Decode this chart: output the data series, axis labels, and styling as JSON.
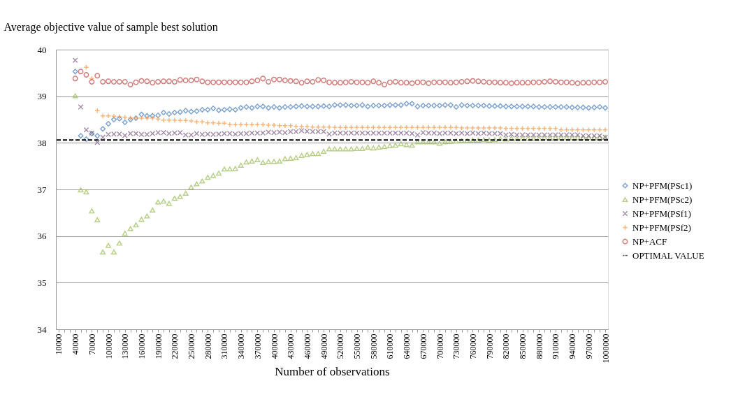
{
  "chart_data": {
    "type": "scatter",
    "xlabel": "Number of observations",
    "ylabel": "Average objective value of sample best solution",
    "categories": [
      "10000",
      null,
      null,
      "40000",
      null,
      null,
      "70000",
      null,
      null,
      "100000",
      null,
      null,
      "130000",
      null,
      null,
      "160000",
      null,
      null,
      "190000",
      null,
      null,
      "220000",
      null,
      null,
      "250000",
      null,
      null,
      "280000",
      null,
      null,
      "310000",
      null,
      null,
      "340000",
      null,
      null,
      "370000",
      null,
      null,
      "400000",
      null,
      null,
      "430000",
      null,
      null,
      "460000",
      null,
      null,
      "490000",
      null,
      null,
      "520000",
      null,
      null,
      "550000",
      null,
      null,
      "580000",
      null,
      null,
      "610000",
      null,
      null,
      "640000",
      null,
      null,
      "670000",
      null,
      null,
      "700000",
      null,
      null,
      "730000",
      null,
      null,
      "760000",
      null,
      null,
      "790000",
      null,
      null,
      "820000",
      null,
      null,
      "850000",
      null,
      null,
      "880000",
      null,
      null,
      "910000",
      null,
      null,
      "940000",
      null,
      null,
      "970000",
      null,
      null,
      "1000000"
    ],
    "ylim": [
      34,
      40
    ],
    "yticks": [
      34,
      35,
      36,
      37,
      38,
      39,
      40
    ],
    "grid": "y",
    "legend": "right",
    "series": [
      {
        "name": "NP+PFM(PSc1)",
        "color": "#4a7ebb",
        "marker": "diamond",
        "values": [
          null,
          null,
          null,
          39.53,
          38.15,
          38.08,
          38.2,
          38.15,
          38.3,
          38.41,
          38.5,
          38.52,
          38.44,
          38.5,
          38.53,
          38.61,
          38.58,
          38.58,
          38.59,
          38.65,
          38.62,
          38.65,
          38.66,
          38.69,
          38.67,
          38.68,
          38.71,
          38.71,
          38.74,
          38.7,
          38.71,
          38.72,
          38.71,
          38.75,
          38.77,
          38.75,
          38.78,
          38.78,
          38.75,
          38.77,
          38.75,
          38.77,
          38.77,
          38.78,
          38.79,
          38.78,
          38.78,
          38.78,
          38.79,
          38.78,
          38.81,
          38.81,
          38.81,
          38.8,
          38.8,
          38.81,
          38.78,
          38.8,
          38.8,
          38.8,
          38.81,
          38.81,
          38.81,
          38.84,
          38.84,
          38.78,
          38.8,
          38.8,
          38.8,
          38.8,
          38.81,
          38.81,
          38.77,
          38.81,
          38.8,
          38.8,
          38.8,
          38.8,
          38.79,
          38.79,
          38.79,
          38.78,
          38.78,
          38.78,
          38.78,
          38.78,
          38.78,
          38.77,
          38.77,
          38.77,
          38.77,
          38.77,
          38.77,
          38.76,
          38.76,
          38.76,
          38.75,
          38.76,
          38.77,
          38.75
        ]
      },
      {
        "name": "NP+PFM(PSc2)",
        "color": "#9bbb59",
        "marker": "triangle",
        "values": [
          null,
          null,
          null,
          39.01,
          36.99,
          36.95,
          36.54,
          36.35,
          35.66,
          35.8,
          35.66,
          35.85,
          36.06,
          36.16,
          36.24,
          36.36,
          36.43,
          36.56,
          36.73,
          36.75,
          36.7,
          36.81,
          36.85,
          36.92,
          37.05,
          37.12,
          37.18,
          37.26,
          37.3,
          37.35,
          37.44,
          37.44,
          37.45,
          37.52,
          37.59,
          37.61,
          37.64,
          37.58,
          37.6,
          37.6,
          37.61,
          37.66,
          37.67,
          37.68,
          37.73,
          37.75,
          37.77,
          37.77,
          37.82,
          37.87,
          37.87,
          37.87,
          37.87,
          37.87,
          37.88,
          37.88,
          37.91,
          37.89,
          37.91,
          37.92,
          37.94,
          37.95,
          37.98,
          37.96,
          37.95,
          38.02,
          38.02,
          38.02,
          38.02,
          37.99,
          38.02,
          38.03,
          38.04,
          38.05,
          38.05,
          38.06,
          38.06,
          38.07,
          38.06,
          38.07,
          38.09,
          38.08,
          38.1,
          38.09,
          38.1,
          38.1,
          38.1,
          38.1,
          38.11,
          38.1,
          38.11,
          38.11,
          38.11,
          38.11,
          38.11,
          38.11,
          38.11,
          38.11,
          38.12,
          38.12
        ]
      },
      {
        "name": "NP+PFM(PSf1)",
        "color": "#7f6084",
        "marker": "cross",
        "values": [
          null,
          null,
          null,
          39.77,
          38.77,
          38.28,
          38.21,
          38.01,
          38.12,
          38.18,
          38.19,
          38.19,
          38.16,
          38.2,
          38.2,
          38.18,
          38.18,
          38.2,
          38.22,
          38.22,
          38.2,
          38.21,
          38.22,
          38.17,
          38.17,
          38.2,
          38.18,
          38.19,
          38.18,
          38.19,
          38.2,
          38.2,
          38.19,
          38.2,
          38.2,
          38.21,
          38.21,
          38.21,
          38.23,
          38.22,
          38.23,
          38.22,
          38.24,
          38.24,
          38.26,
          38.25,
          38.24,
          38.24,
          38.24,
          38.19,
          38.21,
          38.21,
          38.21,
          38.21,
          38.21,
          38.21,
          38.21,
          38.21,
          38.21,
          38.21,
          38.21,
          38.21,
          38.21,
          38.21,
          38.2,
          38.17,
          38.22,
          38.21,
          38.21,
          38.2,
          38.21,
          38.21,
          38.2,
          38.21,
          38.2,
          38.21,
          38.2,
          38.21,
          38.2,
          38.2,
          38.2,
          38.17,
          38.18,
          38.17,
          38.17,
          38.17,
          38.17,
          38.17,
          38.17,
          38.17,
          38.17,
          38.17,
          38.17,
          38.17,
          38.17,
          38.15,
          38.15,
          38.15,
          38.15,
          38.12
        ]
      },
      {
        "name": "NP+PFM(PSf2)",
        "color": "#f79646",
        "marker": "plus",
        "values": [
          null,
          null,
          null,
          null,
          null,
          39.62,
          39.38,
          38.69,
          38.58,
          38.58,
          38.57,
          38.56,
          38.55,
          38.53,
          38.53,
          38.53,
          38.53,
          38.53,
          38.51,
          38.49,
          38.49,
          38.49,
          38.48,
          38.48,
          38.47,
          38.45,
          38.45,
          38.43,
          38.43,
          38.42,
          38.42,
          38.39,
          38.39,
          38.39,
          38.39,
          38.39,
          38.39,
          38.39,
          38.38,
          38.38,
          38.37,
          38.37,
          38.37,
          38.35,
          38.35,
          38.35,
          38.34,
          38.34,
          38.34,
          38.34,
          38.33,
          38.33,
          38.33,
          38.33,
          38.33,
          38.33,
          38.33,
          38.33,
          38.33,
          38.33,
          38.33,
          38.33,
          38.33,
          38.33,
          38.33,
          38.33,
          38.33,
          38.33,
          38.33,
          38.33,
          38.33,
          38.33,
          38.33,
          38.32,
          38.32,
          38.32,
          38.32,
          38.32,
          38.32,
          38.32,
          38.32,
          38.31,
          38.31,
          38.31,
          38.31,
          38.31,
          38.31,
          38.31,
          38.31,
          38.31,
          38.31,
          38.28,
          38.28,
          38.28,
          38.28,
          38.28,
          38.28,
          38.28,
          38.28,
          38.28
        ]
      },
      {
        "name": "NP+ACF",
        "color": "#be4b48",
        "marker": "circle",
        "values": [
          null,
          null,
          null,
          39.38,
          39.53,
          39.46,
          39.31,
          39.44,
          39.31,
          39.32,
          39.31,
          39.31,
          39.31,
          39.25,
          39.3,
          39.33,
          39.32,
          39.29,
          39.31,
          39.32,
          39.32,
          39.31,
          39.35,
          39.34,
          39.34,
          39.36,
          39.32,
          39.3,
          39.3,
          39.3,
          39.3,
          39.3,
          39.3,
          39.3,
          39.3,
          39.32,
          39.34,
          39.38,
          39.31,
          39.36,
          39.36,
          39.34,
          39.33,
          39.32,
          39.29,
          39.32,
          39.31,
          39.35,
          39.34,
          39.3,
          39.29,
          39.29,
          39.3,
          39.31,
          39.3,
          39.3,
          39.29,
          39.32,
          39.29,
          39.25,
          39.3,
          39.31,
          39.29,
          39.29,
          39.28,
          39.3,
          39.3,
          39.28,
          39.3,
          39.3,
          39.3,
          39.29,
          39.3,
          39.31,
          39.32,
          39.33,
          39.32,
          39.31,
          39.3,
          39.3,
          39.29,
          39.29,
          39.28,
          39.29,
          39.29,
          39.29,
          39.3,
          39.3,
          39.31,
          39.32,
          39.31,
          39.3,
          39.3,
          39.29,
          39.28,
          39.29,
          39.29,
          39.3,
          39.3,
          39.31
        ]
      }
    ],
    "ref_lines": [
      {
        "axis": "y",
        "value": 38.06,
        "label": "OPTIMAL VALUE",
        "color": "#000000",
        "line_style": "dashed"
      }
    ]
  }
}
